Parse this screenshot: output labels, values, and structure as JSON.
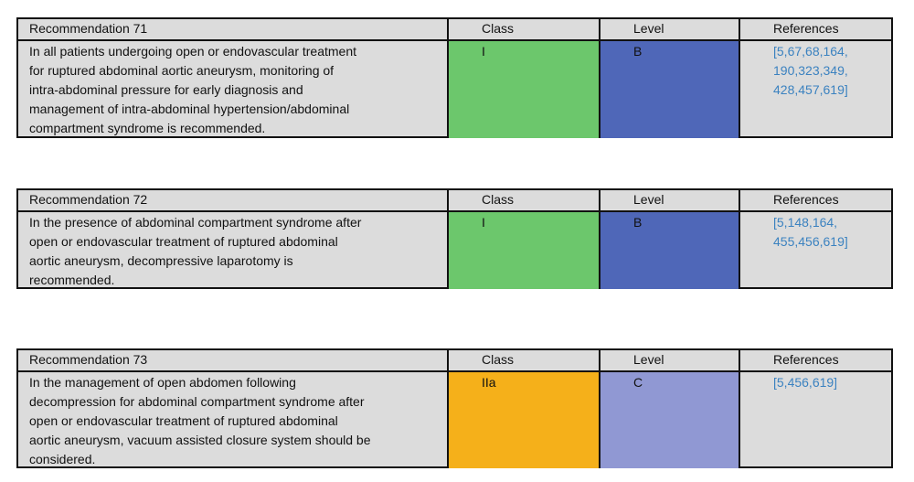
{
  "colors": {
    "class_I": "#6cc76c",
    "class_IIa": "#f5b01a",
    "level_B": "#4f67b8",
    "level_C": "#9098d3",
    "background": "#dcdcdc",
    "references_text": "#3b82c0"
  },
  "headers": {
    "class": "Class",
    "level": "Level",
    "references": "References"
  },
  "recommendations": [
    {
      "title": "Recommendation 71",
      "text": "In all patients undergoing open or endovascular treatment\nfor ruptured abdominal aortic aneurysm, monitoring of\nintra-abdominal pressure for early diagnosis and\nmanagement of intra-abdominal hypertension/abdominal\ncompartment syndrome is recommended.",
      "class": "I",
      "level": "B",
      "references": "[5,67,68,164,\n190,323,349,\n428,457,619]"
    },
    {
      "title": "Recommendation 72",
      "text": "In the presence of abdominal compartment syndrome after\nopen or endovascular treatment of ruptured abdominal\naortic aneurysm, decompressive laparotomy is\nrecommended.",
      "class": "I",
      "level": "B",
      "references": "[5,148,164,\n455,456,619]"
    },
    {
      "title": "Recommendation 73",
      "text": "In the management of open abdomen following\ndecompression for abdominal compartment syndrome after\nopen or endovascular treatment of ruptured abdominal\naortic aneurysm, vacuum assisted closure system should be\nconsidered.",
      "class": "IIa",
      "level": "C",
      "references": "[5,456,619]"
    }
  ]
}
